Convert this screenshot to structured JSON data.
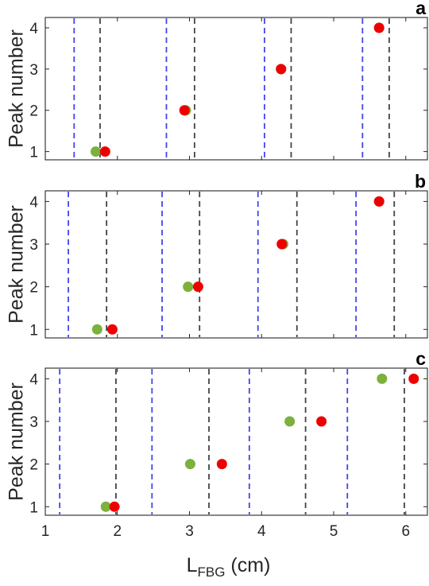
{
  "chart_data": [
    {
      "type": "scatter",
      "panel_label": "a",
      "ylabel": "Peak number",
      "xlim": [
        1,
        6.3
      ],
      "ylim": [
        0.8,
        4.25
      ],
      "yticks": [
        1,
        2,
        3,
        4
      ],
      "grid": false,
      "series": [
        {
          "color": "#7bb13c",
          "points": [
            [
              1.7,
              1
            ],
            [
              2.95,
              2
            ],
            [
              4.27,
              3
            ],
            [
              5.63,
              4
            ]
          ]
        },
        {
          "color": "#ee0000",
          "points": [
            [
              1.83,
              1
            ],
            [
              2.93,
              2
            ],
            [
              4.27,
              3
            ],
            [
              5.63,
              4
            ]
          ]
        }
      ],
      "vlines": [
        {
          "color": "#4444ee",
          "x": [
            1.4,
            2.68,
            4.04,
            5.4
          ]
        },
        {
          "color": "#444444",
          "x": [
            1.76,
            3.07,
            4.41,
            5.77
          ]
        }
      ]
    },
    {
      "type": "scatter",
      "panel_label": "b",
      "ylabel": "Peak number",
      "xlim": [
        1,
        6.3
      ],
      "ylim": [
        0.8,
        4.25
      ],
      "yticks": [
        1,
        2,
        3,
        4
      ],
      "grid": false,
      "series": [
        {
          "color": "#7bb13c",
          "points": [
            [
              1.72,
              1
            ],
            [
              2.98,
              2
            ],
            [
              4.3,
              3
            ],
            [
              5.63,
              4
            ]
          ]
        },
        {
          "color": "#ee0000",
          "points": [
            [
              1.93,
              1
            ],
            [
              3.12,
              2
            ],
            [
              4.28,
              3
            ],
            [
              5.63,
              4
            ]
          ]
        }
      ],
      "vlines": [
        {
          "color": "#4444ee",
          "x": [
            1.32,
            2.62,
            3.95,
            5.31
          ]
        },
        {
          "color": "#444444",
          "x": [
            1.85,
            3.14,
            4.49,
            5.84
          ]
        }
      ]
    },
    {
      "type": "scatter",
      "panel_label": "c",
      "ylabel": "Peak number",
      "xlabel": "L",
      "xlabel_sub": "FBG",
      "xlabel_unit": " (cm)",
      "xlim": [
        1,
        6.3
      ],
      "ylim": [
        0.8,
        4.25
      ],
      "xticks": [
        1,
        2,
        3,
        4,
        5,
        6
      ],
      "yticks": [
        1,
        2,
        3,
        4
      ],
      "grid": false,
      "series": [
        {
          "color": "#7bb13c",
          "points": [
            [
              1.84,
              1
            ],
            [
              3.01,
              2
            ],
            [
              4.39,
              3
            ],
            [
              5.67,
              4
            ]
          ]
        },
        {
          "color": "#ee0000",
          "points": [
            [
              1.96,
              1
            ],
            [
              3.45,
              2
            ],
            [
              4.83,
              3
            ],
            [
              6.11,
              4
            ]
          ]
        }
      ],
      "vlines": [
        {
          "color": "#4444ee",
          "x": [
            1.2,
            2.48,
            3.83,
            5.19
          ]
        },
        {
          "color": "#444444",
          "x": [
            1.98,
            3.27,
            4.61,
            5.98
          ]
        }
      ]
    }
  ]
}
